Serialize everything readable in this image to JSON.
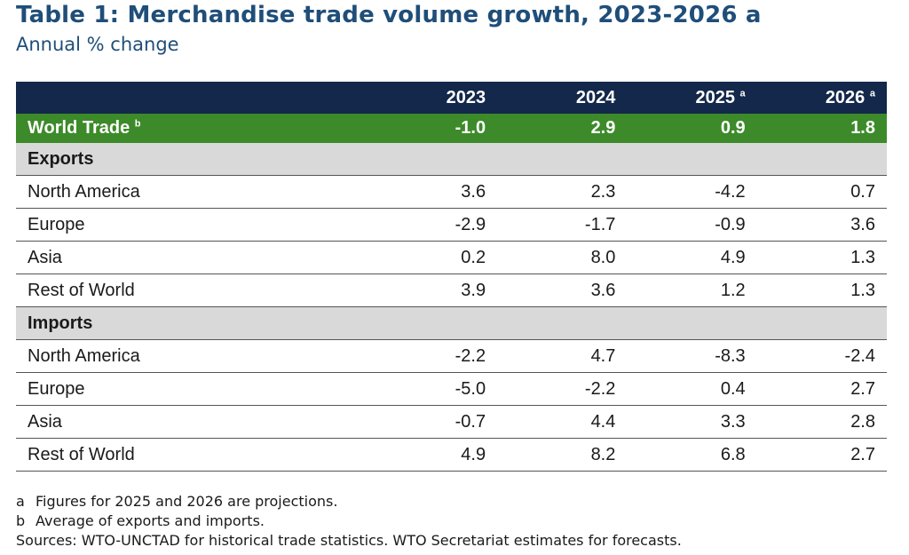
{
  "title": "Table 1: Merchandise trade volume growth, 2023-2026 a",
  "subtitle": "Annual % change",
  "table": {
    "header": [
      "",
      "2023",
      "2024",
      "2025",
      "2026"
    ],
    "header_sup": [
      "",
      "",
      "",
      "a",
      "a"
    ],
    "world": {
      "label": "World Trade",
      "sup": "b",
      "values": [
        "-1.0",
        "2.9",
        "0.9",
        "1.8"
      ]
    },
    "exports": {
      "label": "Exports",
      "rows": [
        {
          "label": "North America",
          "values": [
            "3.6",
            "2.3",
            "-4.2",
            "0.7"
          ]
        },
        {
          "label": "Europe",
          "values": [
            "-2.9",
            "-1.7",
            "-0.9",
            "3.6"
          ]
        },
        {
          "label": "Asia",
          "values": [
            "0.2",
            "8.0",
            "4.9",
            "1.3"
          ]
        },
        {
          "label": "Rest of World",
          "values": [
            "3.9",
            "3.6",
            "1.2",
            "1.3"
          ]
        }
      ]
    },
    "imports": {
      "label": "Imports",
      "rows": [
        {
          "label": "North America",
          "values": [
            "-2.2",
            "4.7",
            "-8.3",
            "-2.4"
          ]
        },
        {
          "label": "Europe",
          "values": [
            "-5.0",
            "-2.2",
            "0.4",
            "2.7"
          ]
        },
        {
          "label": "Asia",
          "values": [
            "-0.7",
            "4.4",
            "3.3",
            "2.8"
          ]
        },
        {
          "label": "Rest of World",
          "values": [
            "4.9",
            "8.2",
            "6.8",
            "2.7"
          ]
        }
      ]
    }
  },
  "notes": [
    {
      "key": "a",
      "text": "Figures for 2025 and 2026 are projections."
    },
    {
      "key": "b",
      "text": "Average of exports and imports."
    }
  ],
  "sources": "Sources: WTO-UNCTAD for historical trade statistics. WTO Secretariat estimates for forecasts.",
  "colors": {
    "title": "#1f4e79",
    "header_bg": "#13284a",
    "world_bg": "#3d8a2a",
    "section_bg": "#d9d9d9"
  }
}
